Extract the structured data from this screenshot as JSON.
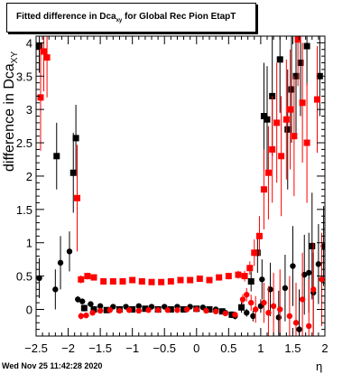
{
  "title": {
    "prefix": "Fitted difference in Dca",
    "sub": "xy",
    "suffix": " for Global Rec Pion EtapT"
  },
  "ylabel": {
    "main": "difference in Dca",
    "sub": "XY"
  },
  "xlabel": "η",
  "timestamp": "Wed Nov 25 11:42:28 2020",
  "chart_data": {
    "type": "scatter",
    "xlim": [
      -2.5,
      2.0
    ],
    "ylim": [
      -0.4,
      4.1
    ],
    "xticks": [
      -2.5,
      -2,
      -1.5,
      -1,
      -0.5,
      0,
      0.5,
      1,
      1.5,
      2
    ],
    "xtick_labels": [
      "−2.5",
      "−2",
      "−1.5",
      "−1",
      "−0.5",
      "0",
      "0.5",
      "1",
      "1.5",
      "2"
    ],
    "yticks": [
      0,
      0.5,
      1,
      1.5,
      2,
      2.5,
      3,
      3.5,
      4
    ],
    "ytick_labels": [
      "0",
      "0.5",
      "1",
      "1.5",
      "2",
      "2.5",
      "3",
      "3.5",
      "4"
    ],
    "grid": false,
    "series": [
      {
        "color": "#000000",
        "marker": "square",
        "points": [
          [
            -2.45,
            3.95
          ],
          [
            -2.18,
            2.3
          ],
          [
            -1.92,
            2.05
          ],
          [
            -1.88,
            2.57
          ],
          [
            -1.75,
            0.02
          ],
          [
            -1.6,
            0.0
          ],
          [
            -1.4,
            -0.01
          ],
          [
            -1.2,
            0.0
          ],
          [
            -1.0,
            0.0
          ],
          [
            -0.8,
            0.01
          ],
          [
            -0.6,
            0.0
          ],
          [
            -0.4,
            0.0
          ],
          [
            -0.2,
            0.0
          ],
          [
            0.0,
            0.01
          ],
          [
            0.2,
            0.0
          ],
          [
            0.4,
            -0.03
          ],
          [
            0.55,
            -0.08
          ],
          [
            0.7,
            0.03
          ],
          [
            0.85,
            0.42
          ],
          [
            0.95,
            0.85
          ],
          [
            1.05,
            2.9
          ],
          [
            1.1,
            2.85
          ],
          [
            1.18,
            3.2
          ],
          [
            1.3,
            3.75
          ],
          [
            1.42,
            2.7
          ],
          [
            1.48,
            3.3
          ],
          [
            1.55,
            3.5
          ],
          [
            1.62,
            3.7
          ],
          [
            1.72,
            3.95
          ],
          [
            1.8,
            0.95
          ],
          [
            1.92,
            3.5
          ]
        ],
        "errors": [
          0.4,
          0.5,
          0.6,
          0.5,
          0.05,
          0.03,
          0.02,
          0.02,
          0.02,
          0.02,
          0.02,
          0.02,
          0.02,
          0.02,
          0.02,
          0.03,
          0.05,
          0.08,
          0.15,
          0.3,
          0.8,
          0.8,
          0.9,
          0.8,
          0.9,
          0.8,
          0.9,
          0.8,
          0.6,
          0.8,
          0.6
        ]
      },
      {
        "color": "#000000",
        "marker": "circle",
        "points": [
          [
            -2.45,
            0.47
          ],
          [
            -2.2,
            0.3
          ],
          [
            -2.12,
            0.7
          ],
          [
            -1.98,
            0.87
          ],
          [
            -1.85,
            0.15
          ],
          [
            -1.78,
            0.12
          ],
          [
            -1.65,
            0.08
          ],
          [
            -1.5,
            0.05
          ],
          [
            -1.3,
            0.04
          ],
          [
            -1.1,
            0.04
          ],
          [
            -0.9,
            0.05
          ],
          [
            -0.7,
            0.04
          ],
          [
            -0.5,
            0.04
          ],
          [
            -0.3,
            0.04
          ],
          [
            -0.1,
            0.04
          ],
          [
            0.1,
            0.03
          ],
          [
            0.3,
            0.0
          ],
          [
            0.45,
            -0.05
          ],
          [
            0.6,
            -0.1
          ],
          [
            0.78,
            -0.05
          ],
          [
            0.88,
            -0.1
          ],
          [
            1.0,
            0.05
          ],
          [
            1.02,
            0.45
          ],
          [
            1.15,
            0.3
          ],
          [
            1.28,
            -0.12
          ],
          [
            1.38,
            0.32
          ],
          [
            1.5,
            0.65
          ],
          [
            1.6,
            -0.3
          ],
          [
            1.68,
            0.52
          ],
          [
            1.75,
            0.55
          ],
          [
            1.82,
            0.25
          ],
          [
            1.9,
            0.68
          ],
          [
            1.98,
            0.95
          ]
        ],
        "errors": [
          0.3,
          0.3,
          0.4,
          0.3,
          0.05,
          0.04,
          0.03,
          0.02,
          0.02,
          0.02,
          0.02,
          0.02,
          0.02,
          0.02,
          0.02,
          0.02,
          0.03,
          0.04,
          0.05,
          0.06,
          0.08,
          0.1,
          0.3,
          0.4,
          0.4,
          0.5,
          0.6,
          0.6,
          0.6,
          0.6,
          0.6,
          0.6,
          0.6
        ]
      },
      {
        "color": "#ff0000",
        "marker": "square",
        "points": [
          [
            -2.43,
            3.18
          ],
          [
            -2.38,
            3.87
          ],
          [
            -2.33,
            3.78
          ],
          [
            -1.86,
            1.67
          ],
          [
            -1.8,
            0.45
          ],
          [
            -1.7,
            0.5
          ],
          [
            -1.6,
            0.48
          ],
          [
            -1.45,
            0.42
          ],
          [
            -1.3,
            0.42
          ],
          [
            -1.15,
            0.42
          ],
          [
            -1.0,
            0.44
          ],
          [
            -0.85,
            0.42
          ],
          [
            -0.7,
            0.41
          ],
          [
            -0.55,
            0.41
          ],
          [
            -0.4,
            0.42
          ],
          [
            -0.25,
            0.44
          ],
          [
            -0.1,
            0.44
          ],
          [
            0.05,
            0.46
          ],
          [
            0.2,
            0.44
          ],
          [
            0.35,
            0.48
          ],
          [
            0.5,
            0.5
          ],
          [
            0.65,
            0.52
          ],
          [
            0.75,
            0.5
          ],
          [
            0.83,
            0.62
          ],
          [
            0.9,
            0.85
          ],
          [
            0.98,
            1.1
          ],
          [
            1.05,
            1.8
          ],
          [
            1.12,
            2.05
          ],
          [
            1.18,
            2.4
          ],
          [
            1.25,
            2.8
          ],
          [
            1.32,
            2.3
          ],
          [
            1.4,
            2.85
          ],
          [
            1.46,
            3.0
          ],
          [
            1.52,
            2.6
          ],
          [
            1.58,
            4.05
          ],
          [
            1.65,
            3.1
          ],
          [
            1.72,
            2.5
          ],
          [
            1.88,
            3.15
          ]
        ],
        "errors": [
          0.8,
          0.6,
          0.6,
          0.8,
          0.06,
          0.05,
          0.04,
          0.03,
          0.03,
          0.03,
          0.03,
          0.03,
          0.03,
          0.03,
          0.03,
          0.03,
          0.03,
          0.03,
          0.03,
          0.04,
          0.05,
          0.06,
          0.08,
          0.1,
          0.2,
          0.3,
          0.6,
          0.7,
          0.8,
          0.9,
          0.9,
          0.9,
          0.9,
          0.9,
          0.7,
          0.9,
          0.9,
          0.8
        ]
      },
      {
        "color": "#ff0000",
        "marker": "circle",
        "points": [
          [
            -1.8,
            -0.1
          ],
          [
            -1.72,
            -0.09
          ],
          [
            -1.62,
            -0.05
          ],
          [
            -1.5,
            -0.02
          ],
          [
            -1.35,
            -0.01
          ],
          [
            -1.2,
            -0.02
          ],
          [
            -1.05,
            -0.01
          ],
          [
            -0.9,
            -0.02
          ],
          [
            -0.75,
            -0.01
          ],
          [
            -0.6,
            -0.01
          ],
          [
            -0.45,
            -0.01
          ],
          [
            -0.3,
            -0.01
          ],
          [
            -0.15,
            0.0
          ],
          [
            0.0,
            0.0
          ],
          [
            0.15,
            -0.02
          ],
          [
            0.3,
            -0.03
          ],
          [
            0.45,
            -0.06
          ],
          [
            0.6,
            -0.08
          ],
          [
            0.72,
            0.15
          ],
          [
            0.78,
            0.22
          ],
          [
            0.85,
            0.1
          ],
          [
            0.92,
            0.0
          ],
          [
            1.05,
            0.1
          ],
          [
            1.12,
            -0.05
          ],
          [
            1.2,
            0.05
          ],
          [
            1.3,
            0.0
          ],
          [
            1.45,
            -0.1
          ],
          [
            1.55,
            -0.2
          ],
          [
            1.65,
            0.15
          ],
          [
            1.75,
            -0.25
          ],
          [
            1.82,
            0.3
          ],
          [
            1.95,
            0.45
          ]
        ],
        "errors": [
          0.05,
          0.04,
          0.03,
          0.02,
          0.02,
          0.02,
          0.02,
          0.02,
          0.02,
          0.02,
          0.02,
          0.02,
          0.02,
          0.02,
          0.02,
          0.02,
          0.03,
          0.04,
          0.08,
          0.1,
          0.12,
          0.2,
          0.3,
          0.4,
          0.5,
          0.6,
          0.6,
          0.6,
          0.7,
          0.7,
          0.7,
          0.7
        ]
      }
    ]
  }
}
